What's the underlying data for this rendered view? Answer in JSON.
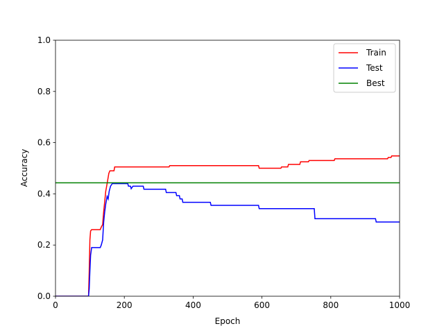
{
  "chart_data": {
    "type": "line",
    "title": "",
    "xlabel": "Epoch",
    "ylabel": "Accuracy",
    "xlim": [
      0,
      1000
    ],
    "ylim": [
      0,
      1.0
    ],
    "xticks": [
      "0",
      "200",
      "400",
      "600",
      "800",
      "1000"
    ],
    "yticks": [
      "0.0",
      "0.2",
      "0.4",
      "0.6",
      "0.8",
      "1.0"
    ],
    "grid": false,
    "legend": "top-right",
    "series": [
      {
        "name": "Train",
        "color": "#ff0000",
        "step": true,
        "points": [
          [
            0,
            0
          ],
          [
            96,
            0
          ],
          [
            98,
            0.1
          ],
          [
            100,
            0.22
          ],
          [
            102,
            0.255
          ],
          [
            105,
            0.26
          ],
          [
            130,
            0.26
          ],
          [
            133,
            0.27
          ],
          [
            137,
            0.28
          ],
          [
            140,
            0.33
          ],
          [
            143,
            0.37
          ],
          [
            146,
            0.41
          ],
          [
            150,
            0.44
          ],
          [
            155,
            0.48
          ],
          [
            158,
            0.49
          ],
          [
            170,
            0.49
          ],
          [
            172,
            0.505
          ],
          [
            330,
            0.505
          ],
          [
            332,
            0.51
          ],
          [
            590,
            0.51
          ],
          [
            592,
            0.5
          ],
          [
            655,
            0.5
          ],
          [
            657,
            0.505
          ],
          [
            675,
            0.505
          ],
          [
            677,
            0.515
          ],
          [
            710,
            0.515
          ],
          [
            712,
            0.525
          ],
          [
            735,
            0.525
          ],
          [
            737,
            0.53
          ],
          [
            810,
            0.53
          ],
          [
            812,
            0.537
          ],
          [
            965,
            0.537
          ],
          [
            967,
            0.542
          ],
          [
            975,
            0.542
          ],
          [
            977,
            0.548
          ],
          [
            1000,
            0.548
          ]
        ]
      },
      {
        "name": "Test",
        "color": "#0000ff",
        "step": true,
        "points": [
          [
            0,
            0
          ],
          [
            96,
            0
          ],
          [
            98,
            0.03
          ],
          [
            100,
            0.1
          ],
          [
            102,
            0.16
          ],
          [
            105,
            0.19
          ],
          [
            130,
            0.19
          ],
          [
            133,
            0.2
          ],
          [
            137,
            0.22
          ],
          [
            140,
            0.29
          ],
          [
            143,
            0.33
          ],
          [
            146,
            0.36
          ],
          [
            150,
            0.39
          ],
          [
            153,
            0.38
          ],
          [
            156,
            0.41
          ],
          [
            160,
            0.43
          ],
          [
            165,
            0.44
          ],
          [
            210,
            0.44
          ],
          [
            212,
            0.43
          ],
          [
            218,
            0.43
          ],
          [
            220,
            0.42
          ],
          [
            225,
            0.43
          ],
          [
            255,
            0.43
          ],
          [
            257,
            0.418
          ],
          [
            320,
            0.418
          ],
          [
            322,
            0.405
          ],
          [
            350,
            0.405
          ],
          [
            352,
            0.393
          ],
          [
            360,
            0.393
          ],
          [
            362,
            0.38
          ],
          [
            368,
            0.38
          ],
          [
            370,
            0.367
          ],
          [
            450,
            0.367
          ],
          [
            452,
            0.355
          ],
          [
            590,
            0.355
          ],
          [
            592,
            0.342
          ],
          [
            752,
            0.342
          ],
          [
            754,
            0.303
          ],
          [
            930,
            0.303
          ],
          [
            932,
            0.29
          ],
          [
            1000,
            0.29
          ]
        ]
      },
      {
        "name": "Best",
        "color": "#008000",
        "step": false,
        "points": [
          [
            0,
            0.443
          ],
          [
            1000,
            0.443
          ]
        ]
      }
    ]
  }
}
